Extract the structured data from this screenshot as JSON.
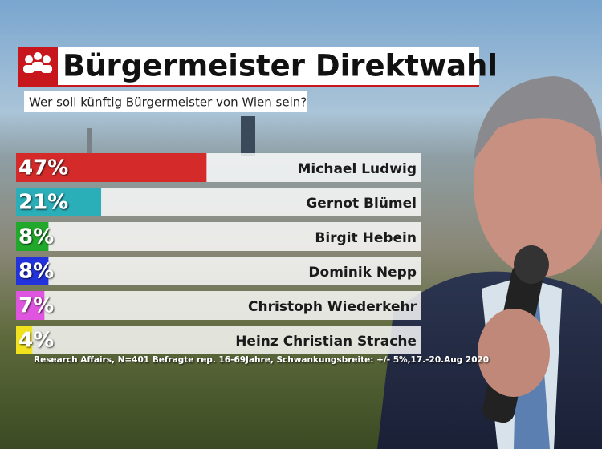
{
  "chart_data": {
    "type": "bar",
    "title": "Bürgermeister Direktwahl",
    "subtitle": "Wer soll künftig Bürgermeister von Wien sein?",
    "categories": [
      "Michael Ludwig",
      "Gernot Blümel",
      "Birgit Hebein",
      "Dominik Nepp",
      "Christoph Wiederkehr",
      "Heinz Christian Strache"
    ],
    "values": [
      47,
      21,
      8,
      8,
      7,
      4
    ],
    "value_labels": [
      "47%",
      "21%",
      "8%",
      "8%",
      "7%",
      "4%"
    ],
    "colors": [
      "#d42a2a",
      "#2aaeb8",
      "#22a82a",
      "#2233dd",
      "#e055e0",
      "#f2e21e"
    ],
    "xlim": [
      0,
      100
    ],
    "source": "Research Affairs, N=401 Befragte rep. 16-69Jahre, Schwankungsbreite: +/- 5%,17.-20.Aug 2020"
  }
}
